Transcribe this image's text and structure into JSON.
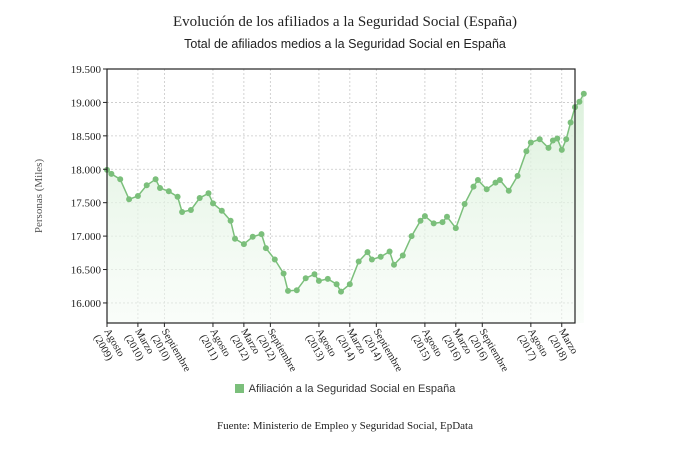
{
  "chart_data": {
    "type": "line",
    "title": "Evolución de los afiliados a la Seguridad Social (España)",
    "subtitle": "Total de afiliados medios a la Seguridad Social en España",
    "ylabel": "Personas (Miles)",
    "source": "Fuente: Ministerio de Empleo y Seguridad Social, EpData",
    "legend_position": "bottom",
    "grid": true,
    "ylim": [
      15700,
      19500
    ],
    "yticks": [
      16000,
      16500,
      17000,
      17500,
      18000,
      18500,
      19000,
      19500
    ],
    "ytick_labels": [
      "16.000",
      "16.500",
      "17.000",
      "17.500",
      "18.000",
      "18.500",
      "19.000",
      "19.500"
    ],
    "x_start": "2009-08",
    "x_end": "2018-06",
    "x_ticks": [
      {
        "month": "2009-08",
        "lines": [
          "Agosto",
          "(2009)"
        ]
      },
      {
        "month": "2010-03",
        "lines": [
          "Marzo",
          "(2010)"
        ]
      },
      {
        "month": "2010-09",
        "lines": [
          "Septiembre",
          "(2010)"
        ]
      },
      {
        "month": "2011-08",
        "lines": [
          "Agosto",
          "(2011)"
        ]
      },
      {
        "month": "2012-03",
        "lines": [
          "Marzo",
          "(2012)"
        ]
      },
      {
        "month": "2012-09",
        "lines": [
          "Septiembre",
          "(2012)"
        ]
      },
      {
        "month": "2013-08",
        "lines": [
          "Agosto",
          "(2013)"
        ]
      },
      {
        "month": "2014-03",
        "lines": [
          "Marzo",
          "(2014)"
        ]
      },
      {
        "month": "2014-09",
        "lines": [
          "Septiembre",
          "(2014)"
        ]
      },
      {
        "month": "2015-08",
        "lines": [
          "Agosto",
          "(2015)"
        ]
      },
      {
        "month": "2016-03",
        "lines": [
          "Marzo",
          "(2016)"
        ]
      },
      {
        "month": "2016-09",
        "lines": [
          "Septiembre",
          "(2016)"
        ]
      },
      {
        "month": "2017-08",
        "lines": [
          "Agosto",
          "(2017)"
        ]
      },
      {
        "month": "2018-03",
        "lines": [
          "Marzo",
          "(2018)"
        ]
      }
    ],
    "series": [
      {
        "name": "Afiliación a la Seguridad Social en España",
        "color": "#7bbf7b",
        "points": [
          [
            "2009-08",
            17990
          ],
          [
            "2009-09",
            17930
          ],
          [
            "2009-11",
            17850
          ],
          [
            "2010-01",
            17550
          ],
          [
            "2010-03",
            17600
          ],
          [
            "2010-05",
            17760
          ],
          [
            "2010-07",
            17850
          ],
          [
            "2010-08",
            17720
          ],
          [
            "2010-10",
            17670
          ],
          [
            "2010-12",
            17590
          ],
          [
            "2011-01",
            17360
          ],
          [
            "2011-03",
            17390
          ],
          [
            "2011-05",
            17570
          ],
          [
            "2011-07",
            17640
          ],
          [
            "2011-08",
            17490
          ],
          [
            "2011-10",
            17380
          ],
          [
            "2011-12",
            17230
          ],
          [
            "2012-01",
            16960
          ],
          [
            "2012-03",
            16880
          ],
          [
            "2012-05",
            16990
          ],
          [
            "2012-07",
            17030
          ],
          [
            "2012-08",
            16820
          ],
          [
            "2012-10",
            16650
          ],
          [
            "2012-12",
            16440
          ],
          [
            "2013-01",
            16180
          ],
          [
            "2013-03",
            16190
          ],
          [
            "2013-05",
            16370
          ],
          [
            "2013-07",
            16430
          ],
          [
            "2013-08",
            16330
          ],
          [
            "2013-10",
            16360
          ],
          [
            "2013-12",
            16280
          ],
          [
            "2014-01",
            16170
          ],
          [
            "2014-03",
            16280
          ],
          [
            "2014-05",
            16620
          ],
          [
            "2014-07",
            16760
          ],
          [
            "2014-08",
            16650
          ],
          [
            "2014-10",
            16690
          ],
          [
            "2014-12",
            16770
          ],
          [
            "2015-01",
            16570
          ],
          [
            "2015-03",
            16710
          ],
          [
            "2015-05",
            17000
          ],
          [
            "2015-07",
            17230
          ],
          [
            "2015-08",
            17300
          ],
          [
            "2015-10",
            17190
          ],
          [
            "2015-12",
            17210
          ],
          [
            "2016-01",
            17290
          ],
          [
            "2016-03",
            17120
          ],
          [
            "2016-05",
            17480
          ],
          [
            "2016-07",
            17740
          ],
          [
            "2016-08",
            17840
          ],
          [
            "2016-10",
            17700
          ],
          [
            "2016-12",
            17800
          ],
          [
            "2017-01",
            17840
          ],
          [
            "2017-03",
            17680
          ],
          [
            "2017-05",
            17900
          ],
          [
            "2017-07",
            18270
          ],
          [
            "2017-08",
            18400
          ],
          [
            "2017-10",
            18450
          ],
          [
            "2017-12",
            18320
          ],
          [
            "2018-01",
            18430
          ],
          [
            "2018-02",
            18460
          ],
          [
            "2018-03",
            18290
          ],
          [
            "2018-04",
            18450
          ],
          [
            "2018-05",
            18700
          ],
          [
            "2018-06",
            18930
          ],
          [
            "2018-07",
            19010
          ],
          [
            "2018-08",
            19130
          ]
        ]
      }
    ]
  }
}
